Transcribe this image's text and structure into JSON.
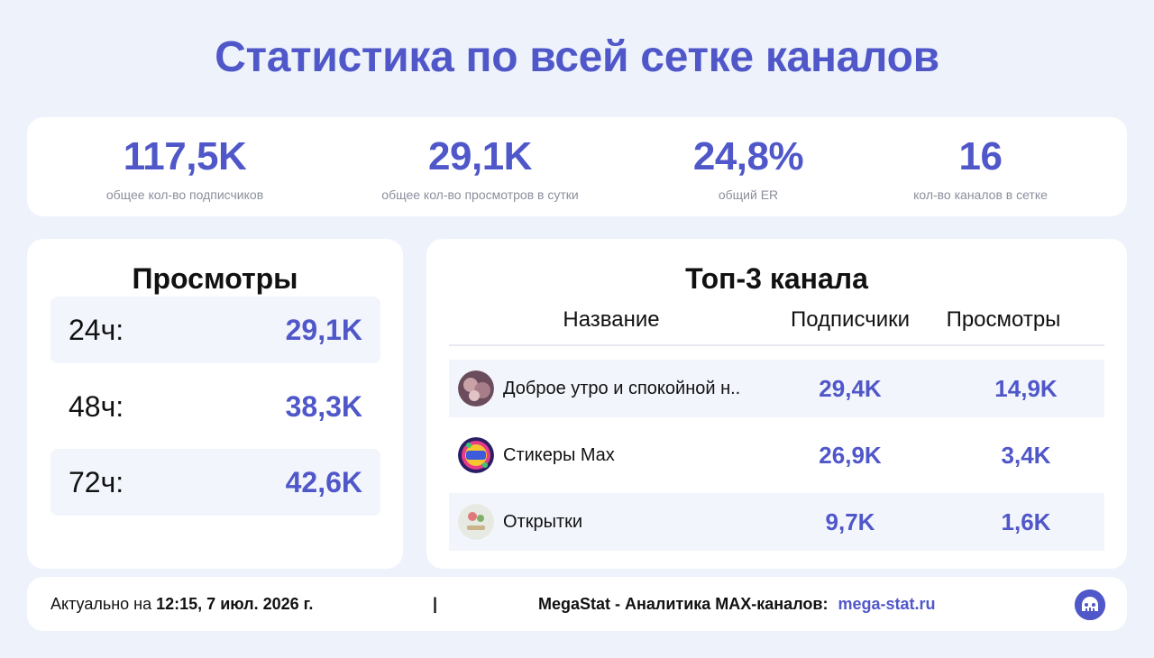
{
  "title": "Статистика по всей сетке каналов",
  "stats": [
    {
      "value": "117,5K",
      "label": "общее кол-во подписчиков"
    },
    {
      "value": "29,1K",
      "label": "общее кол-во просмотров в сутки"
    },
    {
      "value": "24,8%",
      "label": "общий ER"
    },
    {
      "value": "16",
      "label": "кол-во каналов в сетке"
    }
  ],
  "views": {
    "title": "Просмотры",
    "rows": [
      {
        "label": "24ч:",
        "value": "29,1K"
      },
      {
        "label": "48ч:",
        "value": "38,3K"
      },
      {
        "label": "72ч:",
        "value": "42,6K"
      }
    ]
  },
  "top": {
    "title": "Топ-3 канала",
    "headers": {
      "name": "Название",
      "subs": "Подписчики",
      "views": "Просмотры"
    },
    "rows": [
      {
        "name": "Доброе утро и спокойной н..",
        "subs": "29,4K",
        "views": "14,9K",
        "avatar_icon": "channel-avatar-icon"
      },
      {
        "name": "Стикеры Max",
        "subs": "26,9K",
        "views": "3,4K",
        "avatar_icon": "channel-avatar-icon"
      },
      {
        "name": "Открытки",
        "subs": "9,7K",
        "views": "1,6K",
        "avatar_icon": "channel-avatar-icon"
      }
    ]
  },
  "footer": {
    "updated_prefix": "Актуально на",
    "updated_value": "12:15, 7 июл. 2026 г.",
    "separator": "|",
    "brand_text": "MegaStat - Аналитика MAX-каналов:",
    "link": "mega-stat.ru",
    "logo_icon": "megastat-logo-icon"
  },
  "colors": {
    "accent": "#4f57c9",
    "background": "#eef2fb",
    "card": "#ffffff",
    "row_shade": "#f3f5fc"
  }
}
